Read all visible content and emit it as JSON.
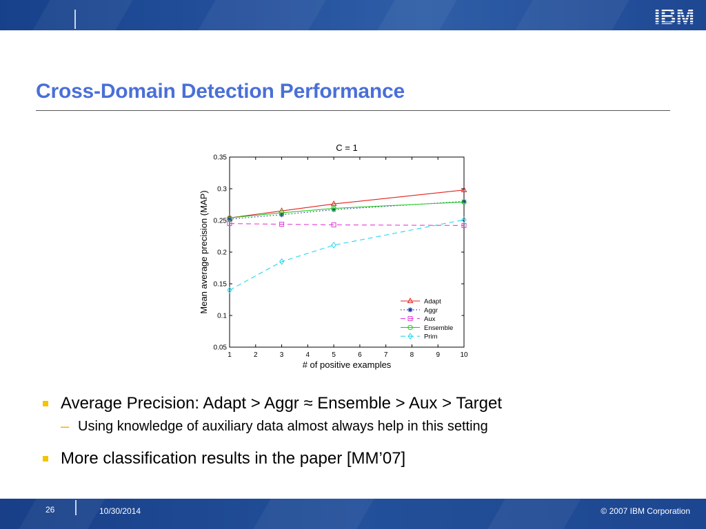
{
  "header": {
    "logo_text": "IBM"
  },
  "slide": {
    "title": "Cross-Domain Detection Performance"
  },
  "bullets": [
    {
      "text": "Average Precision: Adapt > Aggr ≈ Ensemble > Aux > Target"
    },
    {
      "sub": "Using knowledge of auxiliary data almost always help in this setting"
    },
    {
      "text": "More classification results in the paper [MM’07]"
    }
  ],
  "footer": {
    "page": "26",
    "date": "10/30/2014",
    "copyright": "© 2007 IBM Corporation"
  },
  "colors": {
    "banner": "#24509c",
    "title": "#4a6fd8",
    "bullet": "#f5c400",
    "Adapt": "#e0201a",
    "Aggr": "#1a2fa0",
    "Aux": "#e03bd6",
    "Ensemble": "#22cc22",
    "Prim": "#22d6ee"
  },
  "chart_data": {
    "type": "line",
    "title": "C = 1",
    "xlabel": "# of positive examples",
    "ylabel": "Mean average precision (MAP)",
    "xlim": [
      1,
      10
    ],
    "ylim": [
      0.05,
      0.35
    ],
    "xticks": [
      "1",
      "2",
      "3",
      "4",
      "5",
      "6",
      "7",
      "8",
      "9",
      "10"
    ],
    "yticks": [
      "0.05",
      "0.1",
      "0.15",
      "0.2",
      "0.25",
      "0.3",
      "0.35"
    ],
    "x": [
      1,
      3,
      5,
      10
    ],
    "legend_position": "bottom-right",
    "series": [
      {
        "name": "Adapt",
        "values": [
          0.254,
          0.265,
          0.276,
          0.298
        ],
        "color": "#e0201a",
        "dash": "",
        "marker": "triangle"
      },
      {
        "name": "Aggr",
        "values": [
          0.252,
          0.259,
          0.267,
          0.28
        ],
        "color": "#1a2fa0",
        "dash": "1.5 3",
        "marker": "star"
      },
      {
        "name": "Aux",
        "values": [
          0.245,
          0.244,
          0.243,
          0.242
        ],
        "color": "#e03bd6",
        "dash": "7 5",
        "marker": "square"
      },
      {
        "name": "Ensemble",
        "values": [
          0.254,
          0.262,
          0.269,
          0.279
        ],
        "color": "#22cc22",
        "dash": "",
        "marker": "circle"
      },
      {
        "name": "Prim",
        "values": [
          0.14,
          0.185,
          0.211,
          0.251
        ],
        "color": "#22d6ee",
        "dash": "7 5",
        "marker": "diamond"
      }
    ]
  }
}
